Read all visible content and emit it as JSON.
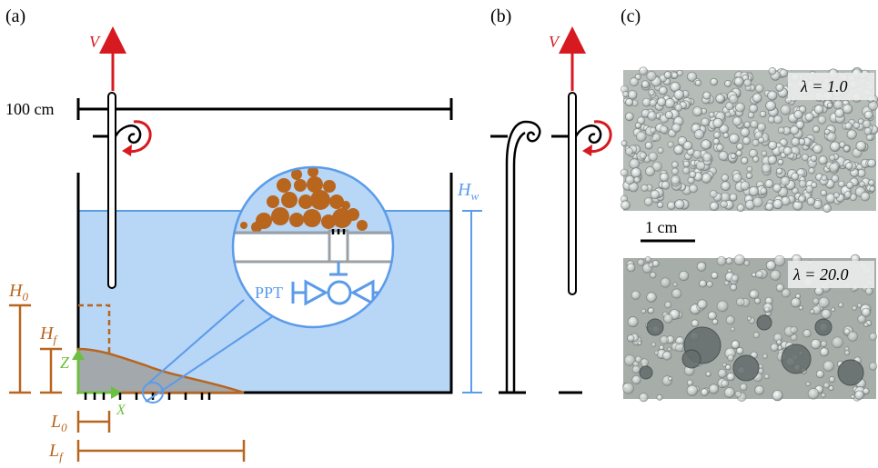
{
  "panels": {
    "a": "(a)",
    "b": "(b)",
    "c": "(c)"
  },
  "labels": {
    "velocity": "V",
    "length_scale": "100 cm",
    "water_height": "H",
    "water_height_sub": "w",
    "initial_height": "H",
    "initial_height_sub": "0",
    "final_height": "H",
    "final_height_sub": "f",
    "z_axis": "Z",
    "x_axis": "X",
    "initial_length": "L",
    "initial_length_sub": "0",
    "final_length": "L",
    "final_length_sub": "f",
    "pressure_transducer": "PPT",
    "photo_scale": "1 cm",
    "photo_top_lambda": "λ = 1.0",
    "photo_bottom_lambda": "λ = 20.0"
  },
  "colors": {
    "water": "#b8d6f5",
    "water_line": "#5b9bea",
    "grain": "#b8651e",
    "arrow_red": "#d71920",
    "axis_green": "#6cbf3f",
    "deposit_fill": "#a3a8ad",
    "tank": "#000000"
  }
}
